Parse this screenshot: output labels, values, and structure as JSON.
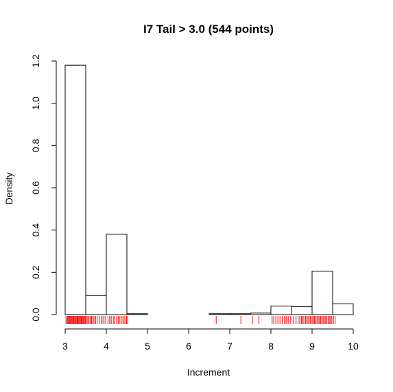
{
  "chart_data": {
    "type": "histogram",
    "title": "I7 Tail > 3.0 (544 points)",
    "xlabel": "Increment",
    "ylabel": "Density",
    "xlim": [
      3,
      10
    ],
    "ylim": [
      0,
      1.2
    ],
    "grid": false,
    "legend": "none",
    "x_ticks": [
      "3",
      "4",
      "5",
      "6",
      "7",
      "8",
      "9",
      "10"
    ],
    "y_ticks": [
      "0.0",
      "0.2",
      "0.4",
      "0.6",
      "0.8",
      "1.0",
      "1.2"
    ],
    "bins": [
      {
        "x0": 3.0,
        "x1": 3.5,
        "density": 1.18
      },
      {
        "x0": 3.5,
        "x1": 4.0,
        "density": 0.09
      },
      {
        "x0": 4.0,
        "x1": 4.5,
        "density": 0.38
      },
      {
        "x0": 4.5,
        "x1": 5.0,
        "density": 0.004
      },
      {
        "x0": 5.0,
        "x1": 5.5,
        "density": 0.0
      },
      {
        "x0": 5.5,
        "x1": 6.0,
        "density": 0.0
      },
      {
        "x0": 6.0,
        "x1": 6.5,
        "density": 0.0
      },
      {
        "x0": 6.5,
        "x1": 7.0,
        "density": 0.004
      },
      {
        "x0": 7.0,
        "x1": 7.5,
        "density": 0.004
      },
      {
        "x0": 7.5,
        "x1": 8.0,
        "density": 0.007
      },
      {
        "x0": 8.0,
        "x1": 8.5,
        "density": 0.04
      },
      {
        "x0": 8.5,
        "x1": 9.0,
        "density": 0.037
      },
      {
        "x0": 9.0,
        "x1": 9.5,
        "density": 0.205
      },
      {
        "x0": 9.5,
        "x1": 10.0,
        "density": 0.051
      }
    ],
    "rug_color": "#ff0000",
    "rug": [
      3.02,
      3.05,
      3.07,
      3.09,
      3.11,
      3.13,
      3.15,
      3.17,
      3.19,
      3.21,
      3.23,
      3.25,
      3.27,
      3.29,
      3.31,
      3.33,
      3.35,
      3.37,
      3.39,
      3.41,
      3.43,
      3.45,
      3.47,
      3.49,
      3.52,
      3.55,
      3.58,
      3.61,
      3.64,
      3.67,
      3.7,
      3.74,
      3.78,
      3.83,
      3.88,
      3.92,
      3.97,
      4.04,
      4.08,
      4.12,
      4.17,
      4.2,
      4.25,
      4.29,
      4.33,
      4.38,
      4.42,
      4.45,
      4.49,
      4.52,
      6.67,
      7.27,
      7.55,
      7.71,
      8.03,
      8.07,
      8.12,
      8.17,
      8.22,
      8.28,
      8.33,
      8.37,
      8.42,
      8.48,
      8.55,
      8.61,
      8.66,
      8.7,
      8.74,
      8.77,
      8.8,
      8.84,
      8.87,
      8.9,
      8.93,
      8.96,
      9.0,
      9.03,
      9.06,
      9.09,
      9.12,
      9.15,
      9.18,
      9.21,
      9.24,
      9.27,
      9.3,
      9.33,
      9.36,
      9.39,
      9.42,
      9.45,
      9.48,
      9.52,
      9.56
    ]
  }
}
